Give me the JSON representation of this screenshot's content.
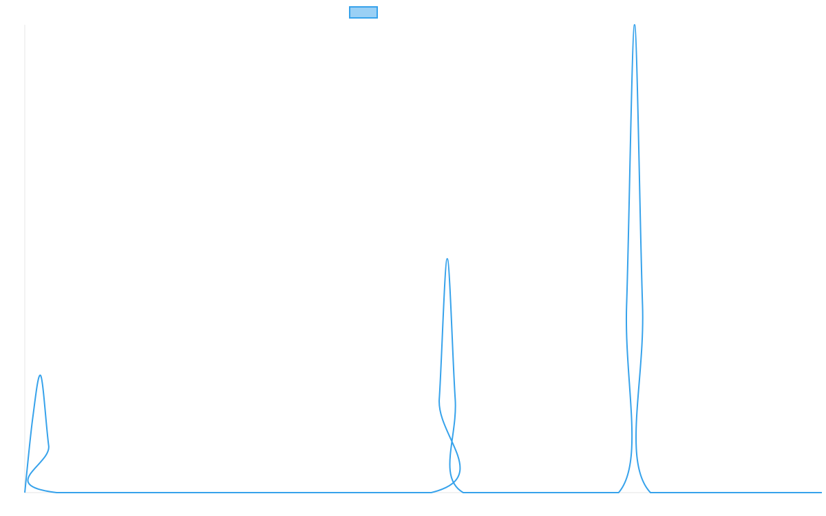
{
  "chart_data": {
    "type": "line",
    "title": "",
    "xlabel": "",
    "ylabel": "",
    "x_range": [
      0,
      50
    ],
    "y_range": [
      0,
      1
    ],
    "grid": false,
    "legend": {
      "position": "top-center",
      "entries": [
        {
          "name": "",
          "color": "#36a2eb",
          "fill": "#9ad0f5"
        }
      ]
    },
    "series": [
      {
        "name": "",
        "color": "#36a2eb",
        "x": [
          0,
          0.5,
          1,
          1.5,
          2,
          25.5,
          26,
          26.5,
          27,
          27.5,
          37.25,
          37.75,
          38.25,
          38.75,
          39.25,
          50
        ],
        "y": [
          0,
          0.16,
          0.25,
          0.1,
          0,
          0,
          0.2,
          0.5,
          0.2,
          0,
          0,
          0.4,
          1.0,
          0.4,
          0,
          0
        ]
      }
    ]
  }
}
